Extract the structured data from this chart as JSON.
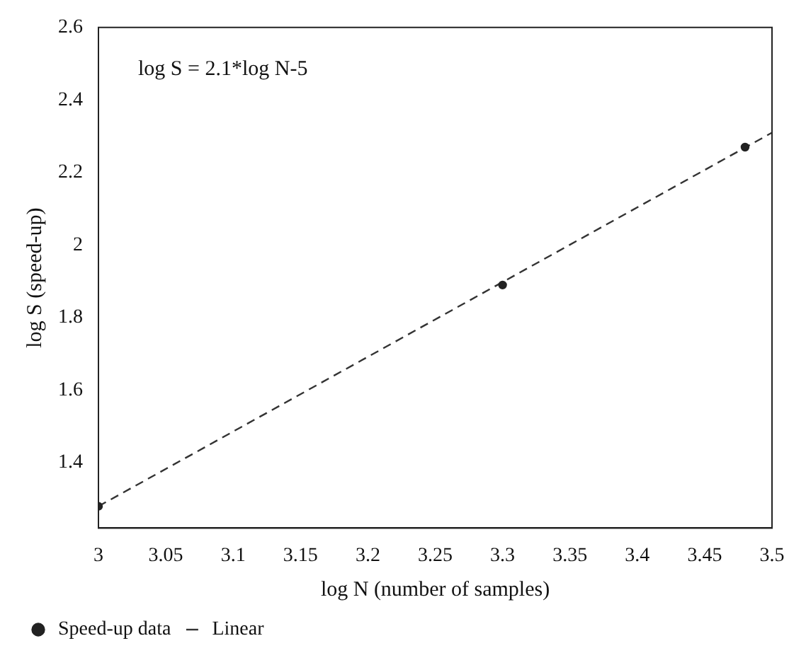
{
  "chart_data": {
    "type": "scatter",
    "xlabel": "log N (number of samples)",
    "ylabel": "log S (speed-up)",
    "annotations": [
      "log S = 2.1*log N-5"
    ],
    "xlim": [
      3,
      3.5
    ],
    "xticks": [
      3,
      3.05,
      3.1,
      3.15,
      3.2,
      3.25,
      3.3,
      3.35,
      3.4,
      3.45,
      3.5
    ],
    "ylim": [
      1.22,
      2.6
    ],
    "yticks": [
      1.4,
      1.6,
      1.8,
      2,
      2.2,
      2.4,
      2.6
    ],
    "grid": false,
    "legend": "bottom left",
    "series": [
      {
        "name": "Speed-up data",
        "color": "#222222",
        "marker": "circle",
        "x": [
          3,
          3.3,
          3.48
        ],
        "values": [
          1.28,
          1.89,
          2.27
        ]
      },
      {
        "name": "Linear",
        "type": "line",
        "color": "#333333",
        "marker": "none",
        "line_style": "dashed",
        "x": [
          3,
          3.5
        ],
        "values": [
          1.28,
          2.31
        ]
      }
    ]
  }
}
